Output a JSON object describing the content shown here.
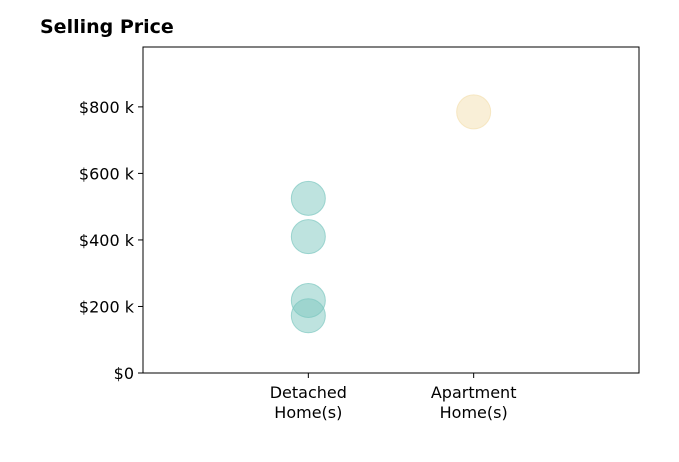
{
  "chart_data": {
    "type": "scatter",
    "title": "Selling Price",
    "xlabel": "",
    "ylabel": "",
    "categories": [
      "Detached\nHome(s)",
      "Apartment\nHome(s)"
    ],
    "ylim": [
      0,
      980
    ],
    "y_unit": "$ thousands",
    "yticks": [
      0,
      200,
      400,
      600,
      800
    ],
    "ytick_labels": [
      "$0",
      "$200 k",
      "$400 k",
      "$600 k",
      "$800 k"
    ],
    "grid": false,
    "series": [
      {
        "category": "Detached\nHome(s)",
        "color": "#7ec8c0",
        "values": [
          525,
          410,
          218,
          172
        ]
      },
      {
        "category": "Apartment\nHome(s)",
        "color": "#f4dfb0",
        "values": [
          785
        ]
      }
    ]
  }
}
